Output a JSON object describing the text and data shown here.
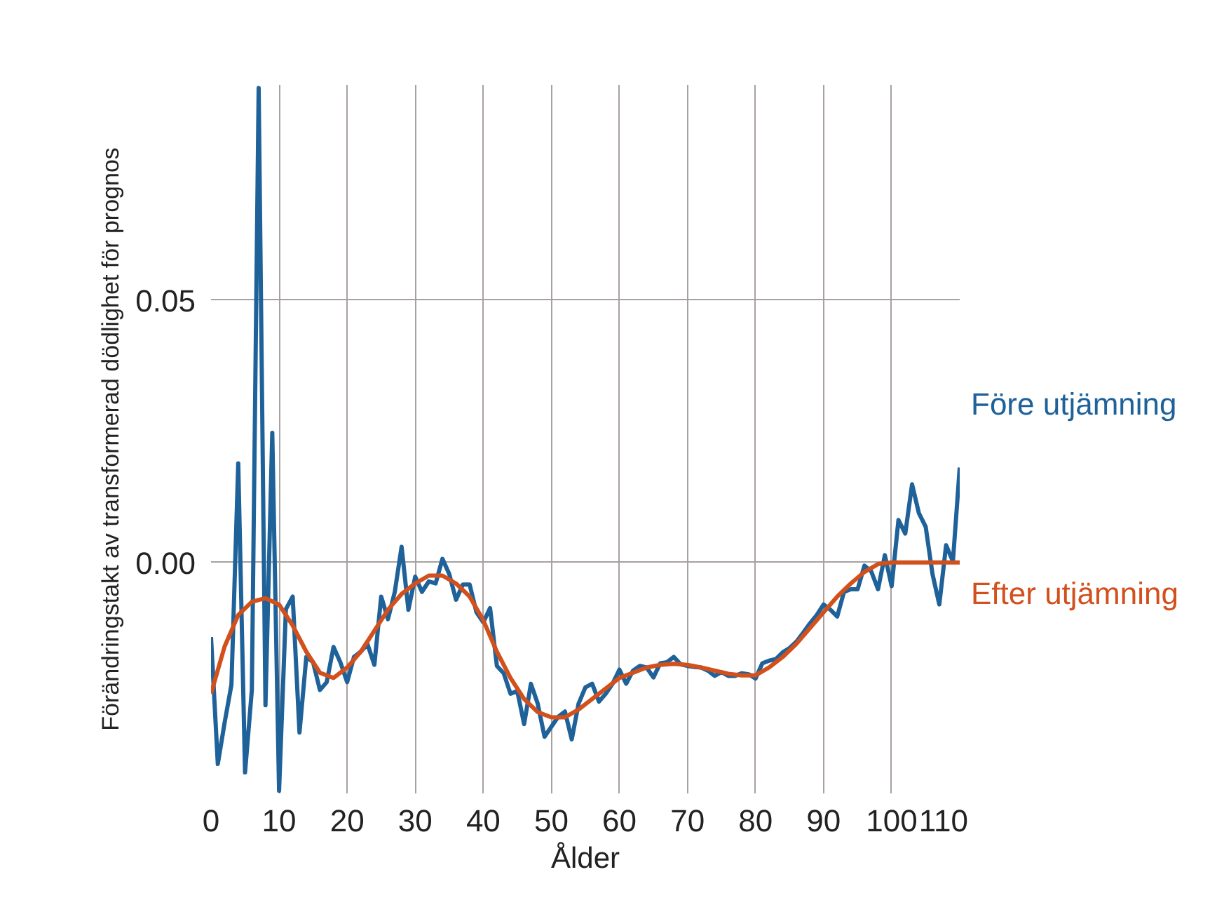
{
  "chart_data": {
    "type": "line",
    "xlabel": "Ålder",
    "ylabel": "Förändringstakt av transformerad dödlighet för prognos",
    "xlim": [
      0,
      110
    ],
    "ylim": [
      -0.044,
      0.091
    ],
    "xticks": [
      0,
      10,
      20,
      30,
      40,
      50,
      60,
      70,
      80,
      90,
      100,
      110
    ],
    "yticks": [
      {
        "value": 0,
        "label": "0.00"
      },
      0.05
    ],
    "grid": true,
    "series": [
      {
        "name": "Före utjämning",
        "color": "#1f6199",
        "x": [
          0,
          1,
          2,
          3,
          4,
          5,
          6,
          7,
          8,
          9,
          10,
          11,
          12,
          13,
          14,
          15,
          16,
          17,
          18,
          19,
          20,
          21,
          22,
          23,
          24,
          25,
          26,
          27,
          28,
          29,
          30,
          31,
          32,
          33,
          34,
          35,
          36,
          37,
          38,
          39,
          40,
          41,
          42,
          43,
          44,
          45,
          46,
          47,
          48,
          49,
          50,
          51,
          52,
          53,
          54,
          55,
          56,
          57,
          58,
          59,
          60,
          61,
          62,
          63,
          64,
          65,
          66,
          67,
          68,
          69,
          70,
          71,
          72,
          73,
          74,
          75,
          76,
          77,
          78,
          79,
          80,
          81,
          82,
          83,
          84,
          85,
          86,
          87,
          88,
          89,
          90,
          91,
          92,
          93,
          94,
          95,
          96,
          97,
          98,
          99,
          100,
          101,
          102,
          103,
          104,
          105,
          106,
          107,
          108,
          109,
          110
        ],
        "values": [
          -0.0142,
          -0.0384,
          -0.0305,
          -0.0233,
          0.0189,
          -0.04,
          -0.0243,
          0.0904,
          -0.0272,
          0.0247,
          -0.0435,
          -0.0089,
          -0.0065,
          -0.0324,
          -0.018,
          -0.019,
          -0.0243,
          -0.0228,
          -0.0161,
          -0.019,
          -0.0228,
          -0.018,
          -0.017,
          -0.0156,
          -0.0195,
          -0.0065,
          -0.0108,
          -0.0056,
          0.003,
          -0.009,
          -0.0027,
          -0.0056,
          -0.0036,
          -0.004,
          0.0007,
          -0.0022,
          -0.0071,
          -0.0042,
          -0.0042,
          -0.0095,
          -0.0114,
          -0.0087,
          -0.0197,
          -0.0211,
          -0.025,
          -0.0245,
          -0.0308,
          -0.0231,
          -0.0269,
          -0.0332,
          -0.0313,
          -0.0294,
          -0.0284,
          -0.0337,
          -0.0269,
          -0.0238,
          -0.0231,
          -0.0265,
          -0.025,
          -0.0231,
          -0.0204,
          -0.0231,
          -0.0206,
          -0.0197,
          -0.02,
          -0.0219,
          -0.0192,
          -0.019,
          -0.018,
          -0.0194,
          -0.0197,
          -0.0199,
          -0.02,
          -0.0206,
          -0.0216,
          -0.0209,
          -0.0216,
          -0.0216,
          -0.0211,
          -0.0213,
          -0.0221,
          -0.0192,
          -0.0187,
          -0.0184,
          -0.0171,
          -0.0163,
          -0.0151,
          -0.0134,
          -0.0116,
          -0.01,
          -0.008,
          -0.009,
          -0.0103,
          -0.0056,
          -0.0051,
          -0.0051,
          -0.0006,
          -0.0017,
          -0.0051,
          0.0014,
          -0.0045,
          0.0081,
          0.0055,
          0.0149,
          0.0094,
          0.0068,
          -0.0022,
          -0.008,
          0.0033,
          0.0002,
          0.0181
        ]
      },
      {
        "name": "Efter utjämning",
        "color": "#d2501c",
        "x": [
          0,
          2,
          4,
          6,
          8,
          10,
          12,
          14,
          16,
          18,
          20,
          22,
          24,
          26,
          28,
          30,
          32,
          34,
          36,
          38,
          40,
          42,
          44,
          46,
          48,
          50,
          52,
          54,
          56,
          58,
          60,
          62,
          64,
          66,
          68,
          70,
          72,
          74,
          76,
          78,
          80,
          82,
          84,
          86,
          88,
          90,
          92,
          94,
          96,
          98,
          100,
          102,
          104,
          106,
          108,
          110
        ],
        "values": [
          -0.025,
          -0.016,
          -0.01,
          -0.0075,
          -0.0068,
          -0.008,
          -0.012,
          -0.017,
          -0.021,
          -0.022,
          -0.02,
          -0.017,
          -0.013,
          -0.009,
          -0.006,
          -0.004,
          -0.0025,
          -0.0025,
          -0.004,
          -0.0065,
          -0.011,
          -0.017,
          -0.022,
          -0.026,
          -0.0285,
          -0.0295,
          -0.0295,
          -0.028,
          -0.026,
          -0.024,
          -0.022,
          -0.021,
          -0.02,
          -0.0195,
          -0.0193,
          -0.0195,
          -0.02,
          -0.0206,
          -0.0212,
          -0.0215,
          -0.0215,
          -0.02,
          -0.018,
          -0.0155,
          -0.0125,
          -0.0095,
          -0.0065,
          -0.004,
          -0.0018,
          -0.0003,
          0,
          0,
          0,
          0,
          0,
          0
        ]
      }
    ]
  }
}
